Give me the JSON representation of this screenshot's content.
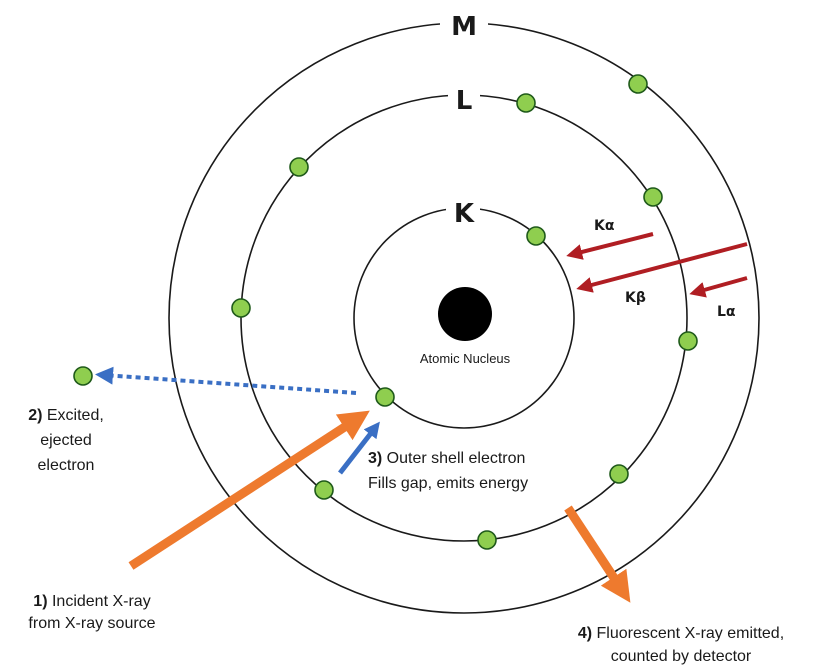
{
  "colors": {
    "electron_fill": "#8fce4f",
    "electron_stroke": "#1f5a1a",
    "nucleus": "#000000",
    "incident_arrow": "#ee7a2e",
    "transition_arrow": "#b01e23",
    "fill_arrow": "#3a6fc4",
    "eject_arrow": "#3a6fc4"
  },
  "shells": {
    "k": {
      "label": "K"
    },
    "l": {
      "label": "L"
    },
    "m": {
      "label": "M"
    }
  },
  "nucleus": {
    "label": "Atomic Nucleus"
  },
  "transitions": {
    "k_alpha": "Kα",
    "k_beta": "Kβ",
    "l_alpha": "Lα"
  },
  "annotations": {
    "incident": {
      "num": "1)",
      "line1": " Incident X-ray",
      "line2": "from X-ray source"
    },
    "ejected": {
      "num": "2)",
      "line1": " Excited,",
      "line2": "ejected",
      "line3": "electron"
    },
    "outer_fill": {
      "num": "3)",
      "line1": " Outer shell electron",
      "line2": "Fills gap, emits energy"
    },
    "fluorescent": {
      "num": "4)",
      "line1": " Fluorescent X-ray emitted,",
      "line2": "counted by detector"
    }
  }
}
